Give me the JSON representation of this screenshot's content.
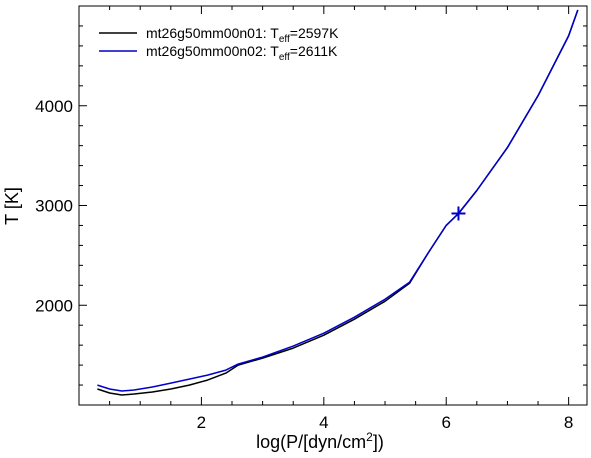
{
  "chart_data": {
    "type": "line",
    "xlabel_prefix": "log(P/[dyn/cm",
    "xlabel_sup": "2",
    "xlabel_suffix": "])",
    "ylabel": "T [K]",
    "xlim": [
      0.0,
      8.3
    ],
    "ylim": [
      1000,
      5000
    ],
    "x_ticks": [
      2,
      4,
      6,
      8
    ],
    "y_ticks": [
      2000,
      3000,
      4000
    ],
    "x_tick_labels": [
      "2",
      "4",
      "6",
      "8"
    ],
    "y_tick_labels": [
      "2000",
      "3000",
      "4000"
    ],
    "legend_position": "top-left",
    "series": [
      {
        "name_main": "mt26g50mm00n01: T",
        "name_sub": "eff",
        "name_tail": "=2597K",
        "color": "#000000",
        "x": [
          0.3,
          0.5,
          0.7,
          0.9,
          1.2,
          1.5,
          1.8,
          2.1,
          2.4,
          2.6,
          3.0,
          3.5,
          4.0,
          4.5,
          5.0,
          5.4,
          5.7,
          6.0,
          6.2,
          6.5,
          7.0,
          7.5,
          8.0,
          8.15
        ],
        "y": [
          1160,
          1120,
          1100,
          1110,
          1130,
          1160,
          1200,
          1250,
          1320,
          1400,
          1470,
          1570,
          1700,
          1860,
          2040,
          2220,
          2520,
          2800,
          2920,
          3150,
          3580,
          4100,
          4700,
          4960
        ]
      },
      {
        "name_main": "mt26g50mm00n02: T",
        "name_sub": "eff",
        "name_tail": "=2611K",
        "color": "#0000cc",
        "x": [
          0.3,
          0.5,
          0.7,
          0.9,
          1.2,
          1.5,
          1.8,
          2.1,
          2.4,
          2.6,
          3.0,
          3.5,
          4.0,
          4.5,
          5.0,
          5.4,
          5.7,
          6.0,
          6.2,
          6.5,
          7.0,
          7.5,
          8.0,
          8.15
        ],
        "y": [
          1200,
          1160,
          1140,
          1150,
          1180,
          1220,
          1260,
          1300,
          1350,
          1410,
          1480,
          1590,
          1720,
          1880,
          2060,
          2230,
          2520,
          2800,
          2920,
          3150,
          3580,
          4100,
          4700,
          4960
        ]
      }
    ],
    "marker": {
      "symbol": "+",
      "x": 6.2,
      "y": 2920,
      "color": "#0000cc"
    }
  }
}
